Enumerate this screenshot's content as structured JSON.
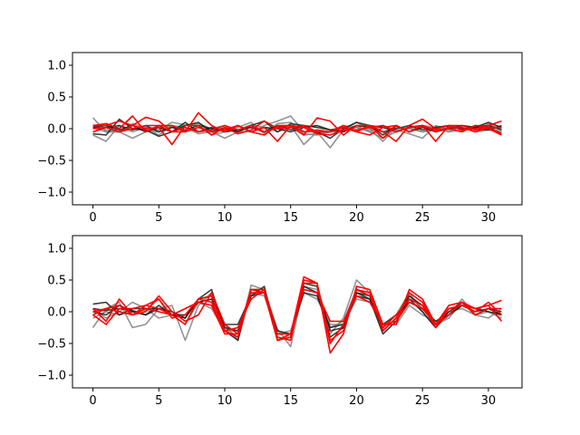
{
  "chart_data": [
    {
      "type": "line",
      "title": "",
      "xlabel": "",
      "ylabel": "",
      "xlim": [
        -1.55,
        32.55
      ],
      "ylim": [
        -1.2,
        1.2
      ],
      "xticks": [
        0,
        5,
        10,
        15,
        20,
        25,
        30
      ],
      "yticks": [
        -1.0,
        -0.5,
        0.0,
        0.5,
        1.0
      ],
      "grid": false,
      "colors": {
        "gray": "#808080",
        "black": "#1a1a1a",
        "red": "#ff0000"
      },
      "x": [
        0,
        1,
        2,
        3,
        4,
        5,
        6,
        7,
        8,
        9,
        10,
        11,
        12,
        13,
        14,
        15,
        16,
        17,
        18,
        19,
        20,
        21,
        22,
        23,
        24,
        25,
        26,
        27,
        28,
        29,
        30,
        31
      ],
      "series": [
        {
          "color": "gray",
          "values": [
            0.17,
            -0.05,
            -0.05,
            0.08,
            0.02,
            -0.02,
            0.1,
            0.06,
            0.05,
            -0.1,
            -0.05,
            -0.02,
            0.06,
            0.02,
            -0.05,
            0.02,
            -0.1,
            -0.08,
            -0.05,
            0.05,
            0.02,
            -0.02,
            0.05,
            -0.03,
            0.03,
            0.05,
            0.02,
            -0.05,
            0.05,
            0.02,
            0.02,
            -0.05
          ]
        },
        {
          "color": "gray",
          "values": [
            -0.1,
            -0.2,
            0.05,
            -0.05,
            0.02,
            -0.1,
            0.05,
            0.02,
            -0.08,
            -0.05,
            -0.15,
            -0.05,
            0.02,
            -0.05,
            0.02,
            0.05,
            -0.25,
            -0.05,
            -0.05,
            -0.02,
            0.05,
            -0.05,
            -0.15,
            -0.05,
            0.02,
            -0.05,
            -0.02,
            0.05,
            0.02,
            -0.05,
            0.08,
            -0.02
          ]
        },
        {
          "color": "gray",
          "values": [
            0.05,
            -0.02,
            -0.05,
            0.0,
            -0.02,
            -0.05,
            0.02,
            0.05,
            0.08,
            0.0,
            0.05,
            -0.05,
            -0.05,
            0.05,
            0.12,
            0.2,
            -0.05,
            -0.05,
            -0.3,
            -0.02,
            0.1,
            0.0,
            -0.2,
            0.02,
            0.0,
            -0.05,
            0.02,
            -0.05,
            -0.02,
            0.05,
            0.05,
            0.0
          ]
        },
        {
          "color": "gray",
          "values": [
            0.02,
            -0.05,
            -0.05,
            -0.15,
            -0.05,
            0.05,
            0.02,
            -0.05,
            0.02,
            -0.02,
            0.0,
            0.02,
            0.1,
            -0.08,
            0.08,
            0.1,
            -0.08,
            -0.1,
            -0.05,
            -0.05,
            0.02,
            -0.05,
            0.05,
            -0.02,
            -0.08,
            -0.15,
            0.05,
            -0.02,
            0.02,
            -0.05,
            -0.02,
            -0.05
          ]
        },
        {
          "color": "black",
          "values": [
            -0.08,
            -0.1,
            0.15,
            0.0,
            -0.02,
            -0.12,
            -0.05,
            0.05,
            0.1,
            -0.05,
            0.02,
            -0.05,
            0.05,
            0.12,
            -0.05,
            0.08,
            0.05,
            -0.05,
            -0.15,
            0.0,
            0.1,
            0.05,
            -0.1,
            0.05,
            -0.05,
            0.02,
            -0.05,
            0.0,
            0.05,
            0.02,
            0.1,
            0.02
          ]
        },
        {
          "color": "black",
          "values": [
            0.02,
            0.05,
            -0.02,
            0.05,
            -0.05,
            0.02,
            -0.05,
            0.1,
            -0.05,
            0.02,
            -0.05,
            -0.02,
            0.02,
            -0.05,
            0.05,
            -0.02,
            0.05,
            0.02,
            -0.02,
            -0.05,
            0.05,
            0.02,
            -0.05,
            0.0,
            0.05,
            -0.02,
            0.02,
            0.05,
            -0.02,
            0.0,
            -0.02,
            0.05
          ]
        },
        {
          "color": "black",
          "values": [
            -0.05,
            0.02,
            0.05,
            -0.02,
            0.05,
            -0.05,
            0.02,
            -0.02,
            0.05,
            0.0,
            -0.02,
            0.05,
            -0.05,
            0.02,
            0.0,
            -0.05,
            0.02,
            0.05,
            -0.02,
            0.02,
            -0.05,
            0.05,
            0.02,
            -0.05,
            0.02,
            0.05,
            -0.05,
            0.02,
            0.0,
            0.02,
            0.05,
            -0.02
          ]
        },
        {
          "color": "red",
          "values": [
            0.05,
            0.05,
            0.12,
            0.05,
            0.18,
            0.12,
            -0.05,
            -0.05,
            0.25,
            0.05,
            -0.05,
            0.05,
            -0.05,
            0.02,
            -0.2,
            0.05,
            -0.1,
            0.17,
            0.12,
            -0.1,
            0.05,
            0.05,
            -0.15,
            0.05,
            -0.05,
            0.05,
            -0.2,
            0.05,
            -0.02,
            0.0,
            0.0,
            -0.1
          ]
        },
        {
          "color": "red",
          "values": [
            0.0,
            0.02,
            -0.05,
            0.05,
            0.0,
            0.02,
            -0.25,
            0.05,
            0.05,
            -0.1,
            0.02,
            -0.08,
            -0.02,
            0.12,
            0.0,
            0.02,
            0.05,
            -0.05,
            -0.05,
            0.02,
            -0.05,
            0.05,
            -0.05,
            -0.2,
            0.05,
            0.15,
            0.0,
            0.05,
            0.05,
            -0.02,
            0.05,
            0.12
          ]
        },
        {
          "color": "red",
          "values": [
            -0.05,
            0.02,
            -0.05,
            0.0,
            0.05,
            0.05,
            -0.05,
            0.02,
            -0.05,
            -0.02,
            0.05,
            -0.02,
            0.05,
            -0.05,
            0.02,
            0.05,
            0.02,
            -0.08,
            -0.1,
            -0.02,
            -0.02,
            0.02,
            0.05,
            -0.05,
            0.02,
            0.05,
            -0.05,
            0.02,
            0.02,
            -0.05,
            0.02,
            -0.08
          ]
        },
        {
          "color": "red",
          "values": [
            0.05,
            0.08,
            0.0,
            0.2,
            -0.05,
            0.05,
            0.05,
            -0.05,
            0.02,
            -0.05,
            -0.02,
            0.05,
            -0.05,
            -0.1,
            0.05,
            0.05,
            -0.05,
            -0.02,
            -0.05,
            0.05,
            -0.05,
            -0.1,
            0.02,
            0.05,
            -0.05,
            0.05,
            -0.02,
            0.0,
            -0.05,
            0.05,
            0.02,
            0.02
          ]
        }
      ]
    },
    {
      "type": "line",
      "title": "",
      "xlabel": "",
      "ylabel": "",
      "xlim": [
        -1.55,
        32.55
      ],
      "ylim": [
        -1.2,
        1.2
      ],
      "xticks": [
        0,
        5,
        10,
        15,
        20,
        25,
        30
      ],
      "yticks": [
        -1.0,
        -0.5,
        0.0,
        0.5,
        1.0
      ],
      "grid": false,
      "colors": {
        "gray": "#808080",
        "black": "#1a1a1a",
        "red": "#ff0000"
      },
      "x": [
        0,
        1,
        2,
        3,
        4,
        5,
        6,
        7,
        8,
        9,
        10,
        11,
        12,
        13,
        14,
        15,
        16,
        17,
        18,
        19,
        20,
        21,
        22,
        23,
        24,
        25,
        26,
        27,
        28,
        29,
        30,
        31
      ],
      "series": [
        {
          "color": "gray",
          "values": [
            -0.25,
            0.05,
            0.15,
            -0.25,
            -0.2,
            0.05,
            0.1,
            -0.45,
            0.1,
            0.3,
            -0.2,
            -0.45,
            0.42,
            0.35,
            -0.28,
            -0.55,
            0.4,
            0.35,
            -0.35,
            -0.1,
            0.5,
            0.3,
            -0.25,
            -0.05,
            0.3,
            0.0,
            -0.25,
            -0.05,
            0.2,
            -0.05,
            -0.1,
            0.05
          ]
        },
        {
          "color": "gray",
          "values": [
            0.05,
            -0.1,
            0.0,
            0.15,
            0.05,
            -0.1,
            -0.05,
            -0.05,
            0.15,
            0.05,
            -0.3,
            -0.3,
            0.3,
            0.25,
            -0.35,
            -0.3,
            0.3,
            0.2,
            -0.2,
            -0.2,
            0.2,
            0.15,
            -0.2,
            -0.2,
            0.1,
            -0.05,
            -0.15,
            0.0,
            0.05,
            -0.05,
            0.0,
            -0.05
          ]
        },
        {
          "color": "gray",
          "values": [
            -0.1,
            0.0,
            -0.05,
            0.0,
            0.02,
            0.2,
            -0.05,
            -0.2,
            0.15,
            0.2,
            -0.25,
            -0.4,
            0.3,
            0.3,
            -0.45,
            -0.4,
            0.35,
            0.3,
            -0.25,
            -0.15,
            0.35,
            0.25,
            -0.3,
            -0.1,
            0.25,
            0.05,
            -0.2,
            -0.1,
            0.15,
            0.05,
            0.0,
            -0.1
          ]
        },
        {
          "color": "black",
          "values": [
            0.12,
            0.15,
            -0.05,
            0.05,
            0.05,
            0.05,
            0.0,
            -0.1,
            0.2,
            0.25,
            -0.25,
            -0.3,
            0.25,
            0.4,
            -0.45,
            -0.4,
            0.45,
            0.4,
            -0.3,
            -0.25,
            0.3,
            0.25,
            -0.3,
            -0.1,
            0.25,
            0.1,
            -0.2,
            -0.05,
            0.1,
            0.05,
            0.0,
            -0.05
          ]
        },
        {
          "color": "black",
          "values": [
            0.0,
            -0.05,
            0.1,
            0.0,
            -0.05,
            0.1,
            -0.05,
            -0.1,
            0.2,
            0.35,
            -0.3,
            -0.45,
            0.35,
            0.35,
            -0.35,
            -0.35,
            0.4,
            0.3,
            -0.4,
            -0.25,
            0.3,
            0.2,
            -0.35,
            -0.15,
            0.2,
            0.0,
            -0.25,
            0.0,
            0.15,
            -0.05,
            0.05,
            -0.05
          ]
        },
        {
          "color": "black",
          "values": [
            0.05,
            0.02,
            0.05,
            0.02,
            -0.05,
            0.05,
            -0.05,
            -0.05,
            0.15,
            0.2,
            -0.2,
            -0.2,
            0.25,
            0.3,
            -0.3,
            -0.35,
            0.3,
            0.25,
            -0.25,
            -0.2,
            0.25,
            0.2,
            -0.2,
            -0.05,
            0.15,
            0.05,
            -0.15,
            -0.05,
            0.1,
            0.0,
            0.05,
            0.0
          ]
        },
        {
          "color": "red",
          "values": [
            0.05,
            -0.15,
            0.2,
            -0.05,
            0.0,
            0.25,
            0.0,
            -0.15,
            -0.05,
            0.3,
            -0.2,
            -0.35,
            0.35,
            0.3,
            -0.45,
            -0.35,
            0.55,
            0.45,
            -0.65,
            -0.35,
            0.4,
            0.35,
            -0.2,
            -0.2,
            0.35,
            0.2,
            -0.2,
            0.1,
            0.15,
            0.05,
            0.1,
            -0.15
          ]
        },
        {
          "color": "red",
          "values": [
            -0.05,
            -0.2,
            0.05,
            0.05,
            0.1,
            0.05,
            -0.05,
            0.05,
            0.15,
            0.1,
            -0.35,
            -0.35,
            0.35,
            0.35,
            -0.45,
            -0.4,
            0.45,
            0.45,
            -0.5,
            -0.2,
            0.35,
            0.3,
            -0.3,
            -0.1,
            0.3,
            0.15,
            -0.2,
            -0.05,
            0.15,
            -0.05,
            0.05,
            0.05
          ]
        },
        {
          "color": "red",
          "values": [
            0.0,
            0.05,
            0.0,
            -0.05,
            0.1,
            0.2,
            -0.1,
            -0.05,
            0.2,
            0.15,
            -0.3,
            -0.4,
            0.3,
            0.3,
            -0.4,
            -0.45,
            0.5,
            0.45,
            -0.45,
            -0.3,
            0.35,
            0.25,
            -0.25,
            -0.05,
            0.2,
            0.1,
            -0.25,
            0.05,
            0.1,
            0.0,
            0.15,
            -0.05
          ]
        },
        {
          "color": "red",
          "values": [
            -0.05,
            0.05,
            0.1,
            -0.05,
            0.05,
            0.0,
            -0.05,
            -0.2,
            0.2,
            0.25,
            -0.3,
            -0.25,
            0.2,
            0.35,
            -0.35,
            -0.35,
            0.35,
            0.3,
            -0.15,
            -0.15,
            0.25,
            0.15,
            -0.2,
            -0.15,
            0.15,
            0.05,
            -0.2,
            0.05,
            0.1,
            0.05,
            0.1,
            0.18
          ]
        }
      ]
    }
  ]
}
